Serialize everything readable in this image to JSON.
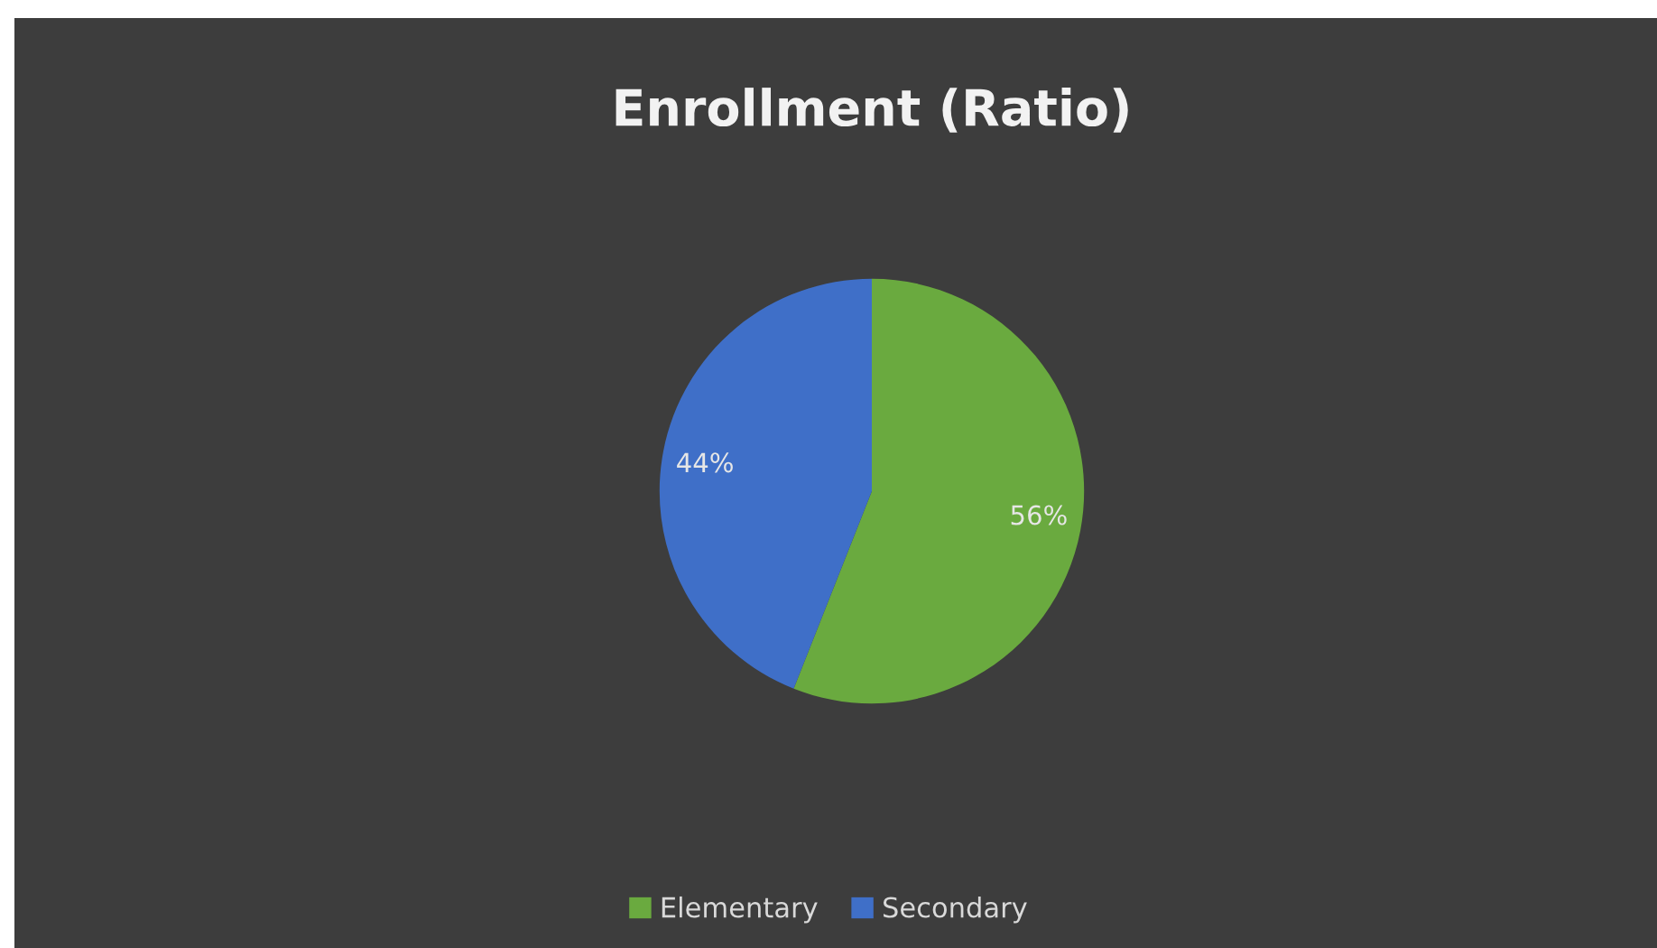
{
  "chart_data": {
    "type": "pie",
    "title": "Enrollment (Ratio)",
    "categories": [
      "Elementary",
      "Secondary"
    ],
    "values": [
      56,
      44
    ],
    "colors": [
      "#6aaa3f",
      "#3f6fc8"
    ],
    "value_labels": [
      "56%",
      "44%"
    ],
    "legend": "bottom"
  }
}
